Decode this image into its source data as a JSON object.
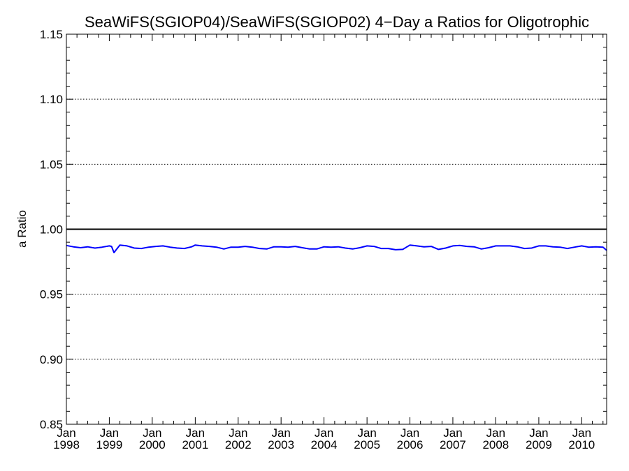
{
  "chart_data": {
    "type": "line",
    "title": "SeaWiFS(SGIOP04)/SeaWiFS(SGIOP02) 4−Day a Ratios for Oligotrophic",
    "xlabel": "",
    "ylabel": "a Ratio",
    "ylim": [
      0.85,
      1.15
    ],
    "yticks": [
      "0.85",
      "0.90",
      "0.95",
      "1.00",
      "1.05",
      "1.10",
      "1.15"
    ],
    "xlim": [
      "1998-01-01",
      "2010-08-01"
    ],
    "xticks": [
      {
        "month": "Jan",
        "year": "1998",
        "date": "1998-01-01"
      },
      {
        "month": "Jan",
        "year": "1999",
        "date": "1999-01-01"
      },
      {
        "month": "Jan",
        "year": "2000",
        "date": "2000-01-01"
      },
      {
        "month": "Jan",
        "year": "2001",
        "date": "2001-01-01"
      },
      {
        "month": "Jan",
        "year": "2002",
        "date": "2002-01-01"
      },
      {
        "month": "Jan",
        "year": "2003",
        "date": "2003-01-01"
      },
      {
        "month": "Jan",
        "year": "2004",
        "date": "2004-01-01"
      },
      {
        "month": "Jan",
        "year": "2005",
        "date": "2005-01-01"
      },
      {
        "month": "Jan",
        "year": "2006",
        "date": "2006-01-01"
      },
      {
        "month": "Jan",
        "year": "2007",
        "date": "2007-01-01"
      },
      {
        "month": "Jan",
        "year": "2008",
        "date": "2008-01-01"
      },
      {
        "month": "Jan",
        "year": "2009",
        "date": "2009-01-01"
      },
      {
        "month": "Jan",
        "year": "2010",
        "date": "2010-01-01"
      }
    ],
    "reference_line": 1.0,
    "dotted_gridlines": [
      0.9,
      0.95,
      1.05,
      1.1
    ],
    "grid": true,
    "colors": {
      "series": "#0000ff",
      "axes": "#000000",
      "reference": "#000000"
    },
    "series": [
      {
        "x": [
          "1998-01-01",
          "1998-03-01",
          "1998-05-01",
          "1998-07-01",
          "1998-09-01",
          "1998-11-01",
          "1999-01-01",
          "1999-01-20",
          "1999-02-10",
          "1999-04-01",
          "1999-06-01",
          "1999-08-01",
          "1999-10-01",
          "1999-12-01",
          "2000-02-01",
          "2000-04-01",
          "2000-06-01",
          "2000-08-01",
          "2000-10-01",
          "2000-12-01",
          "2001-01-01",
          "2001-03-01",
          "2001-05-01",
          "2001-07-01",
          "2001-09-01",
          "2001-11-01",
          "2002-01-01",
          "2002-03-01",
          "2002-05-01",
          "2002-07-01",
          "2002-09-01",
          "2002-11-01",
          "2003-01-01",
          "2003-03-01",
          "2003-05-01",
          "2003-07-01",
          "2003-09-01",
          "2003-11-01",
          "2004-01-01",
          "2004-03-01",
          "2004-05-01",
          "2004-07-01",
          "2004-09-01",
          "2004-11-01",
          "2005-01-01",
          "2005-03-01",
          "2005-05-01",
          "2005-07-01",
          "2005-09-01",
          "2005-11-01",
          "2006-01-01",
          "2006-03-01",
          "2006-05-01",
          "2006-07-01",
          "2006-09-01",
          "2006-11-01",
          "2007-01-01",
          "2007-03-01",
          "2007-05-01",
          "2007-07-01",
          "2007-09-01",
          "2007-11-01",
          "2008-01-01",
          "2008-03-01",
          "2008-05-01",
          "2008-07-01",
          "2008-09-01",
          "2008-11-01",
          "2009-01-01",
          "2009-03-01",
          "2009-05-01",
          "2009-07-01",
          "2009-09-01",
          "2009-11-01",
          "2010-01-01",
          "2010-03-01",
          "2010-05-01",
          "2010-07-01",
          "2010-08-01"
        ],
        "y": [
          0.9875,
          0.9865,
          0.9858,
          0.9865,
          0.9855,
          0.9862,
          0.9872,
          0.9868,
          0.982,
          0.9878,
          0.9872,
          0.9855,
          0.9852,
          0.9862,
          0.9868,
          0.9872,
          0.9862,
          0.9855,
          0.9852,
          0.9865,
          0.9878,
          0.9872,
          0.9868,
          0.9862,
          0.9848,
          0.9862,
          0.9862,
          0.9868,
          0.9862,
          0.9852,
          0.9848,
          0.9865,
          0.9865,
          0.9862,
          0.9868,
          0.9858,
          0.9848,
          0.9848,
          0.9865,
          0.9862,
          0.9865,
          0.9855,
          0.9848,
          0.9858,
          0.9872,
          0.9868,
          0.9852,
          0.9852,
          0.9842,
          0.9845,
          0.9878,
          0.9872,
          0.9865,
          0.9868,
          0.9845,
          0.9855,
          0.9872,
          0.9875,
          0.9868,
          0.9865,
          0.9848,
          0.9858,
          0.9872,
          0.9872,
          0.9872,
          0.9865,
          0.9852,
          0.9855,
          0.9872,
          0.9872,
          0.9865,
          0.9862,
          0.9852,
          0.9862,
          0.9872,
          0.9862,
          0.9865,
          0.9862,
          0.9838
        ]
      }
    ]
  }
}
